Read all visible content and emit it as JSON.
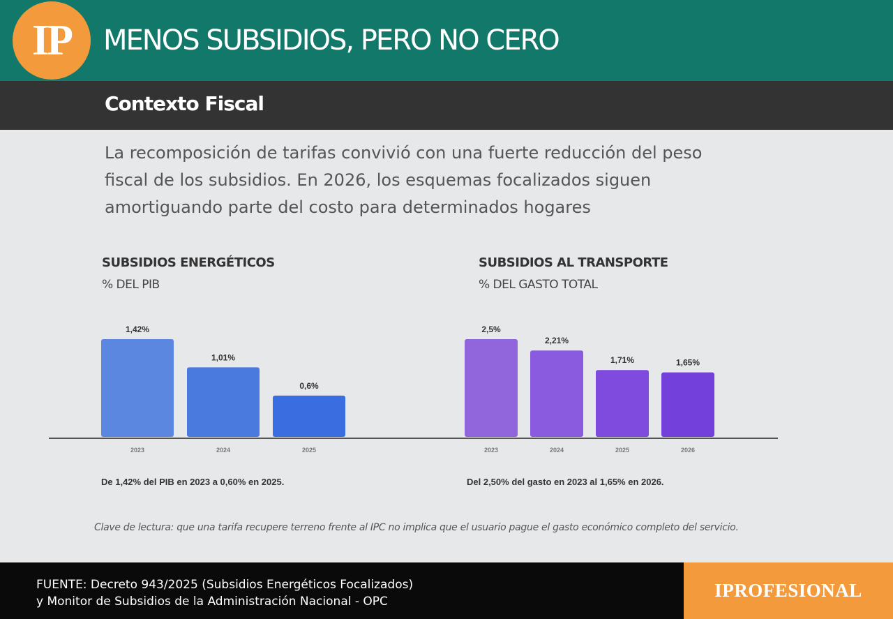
{
  "header": {
    "logo_text": "IP",
    "title": "MENOS SUBSIDIOS, PERO NO CERO",
    "subtitle": "Contexto Fiscal"
  },
  "intro": {
    "lines": [
      "La recomposición de tarifas convivió con una fuerte reducción del peso",
      "fiscal de los subsidios. En 2026, los esquemas focalizados siguen",
      "amortiguando parte del costo para determinados hogares"
    ]
  },
  "chart_data": [
    {
      "type": "bar",
      "title": "SUBSIDIOS ENERGÉTICOS",
      "subtitle": "% DEL PIB",
      "categories": [
        "2023",
        "2024",
        "2025"
      ],
      "values": [
        1.42,
        1.01,
        0.6
      ],
      "value_labels": [
        "1,42%",
        "1,01%",
        "0,6%"
      ],
      "colors": [
        "#5b87e0",
        "#4a7ade",
        "#3a6ee0"
      ],
      "ylim": [
        0,
        1.42
      ],
      "grid": false,
      "note": "De 1,42% del PIB en 2023 a 0,60% en 2025."
    },
    {
      "type": "bar",
      "title": "SUBSIDIOS AL TRANSPORTE",
      "subtitle": "% DEL GASTO TOTAL",
      "categories": [
        "2023",
        "2024",
        "2025",
        "2026"
      ],
      "values": [
        2.5,
        2.21,
        1.71,
        1.65
      ],
      "value_labels": [
        "2,5%",
        "2,21%",
        "1,71%",
        "1,65%"
      ],
      "colors": [
        "#9166dd",
        "#8a5bdf",
        "#7f4bdf",
        "#7340dc"
      ],
      "ylim": [
        0,
        2.5
      ],
      "grid": false,
      "note": "Del 2,50% del gasto en 2023 al 1,65% en 2026."
    }
  ],
  "reading_key": "Clave de lectura: que una tarifa recupere terreno frente al IPC no implica que el usuario pague el gasto económico completo del servicio.",
  "footer": {
    "source_lines": [
      "FUENTE: Decreto 943/2025 (Subsidios Energéticos Focalizados)",
      "y Monitor de Subsidios de la Administración Nacional - OPC"
    ],
    "brand": "IPROFESIONAL"
  },
  "colors": {
    "header_bg": "#12786a",
    "subheader_bg": "#333333",
    "accent_orange": "#f29a3c",
    "page_bg": "#e7e8ea"
  }
}
